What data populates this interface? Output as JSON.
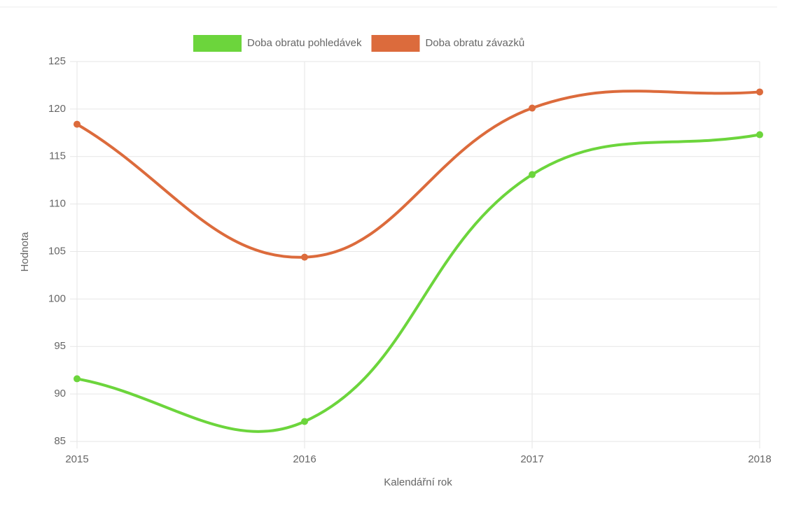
{
  "chart_data": {
    "type": "line",
    "categories": [
      "2015",
      "2016",
      "2017",
      "2018"
    ],
    "series": [
      {
        "name": "Doba obratu pohledávek",
        "color": "#6cd53c",
        "values": [
          91.6,
          87.1,
          113.1,
          117.3
        ]
      },
      {
        "name": "Doba obratu závazků",
        "color": "#dc6b3c",
        "values": [
          118.4,
          104.4,
          120.1,
          121.8
        ]
      }
    ],
    "x_label": "Kalendářní rok",
    "y_label": "Hodnota",
    "ylim": [
      85,
      125
    ],
    "yticks": [
      85,
      90,
      95,
      100,
      105,
      110,
      115,
      120,
      125
    ],
    "grid": true,
    "legend": "top"
  }
}
